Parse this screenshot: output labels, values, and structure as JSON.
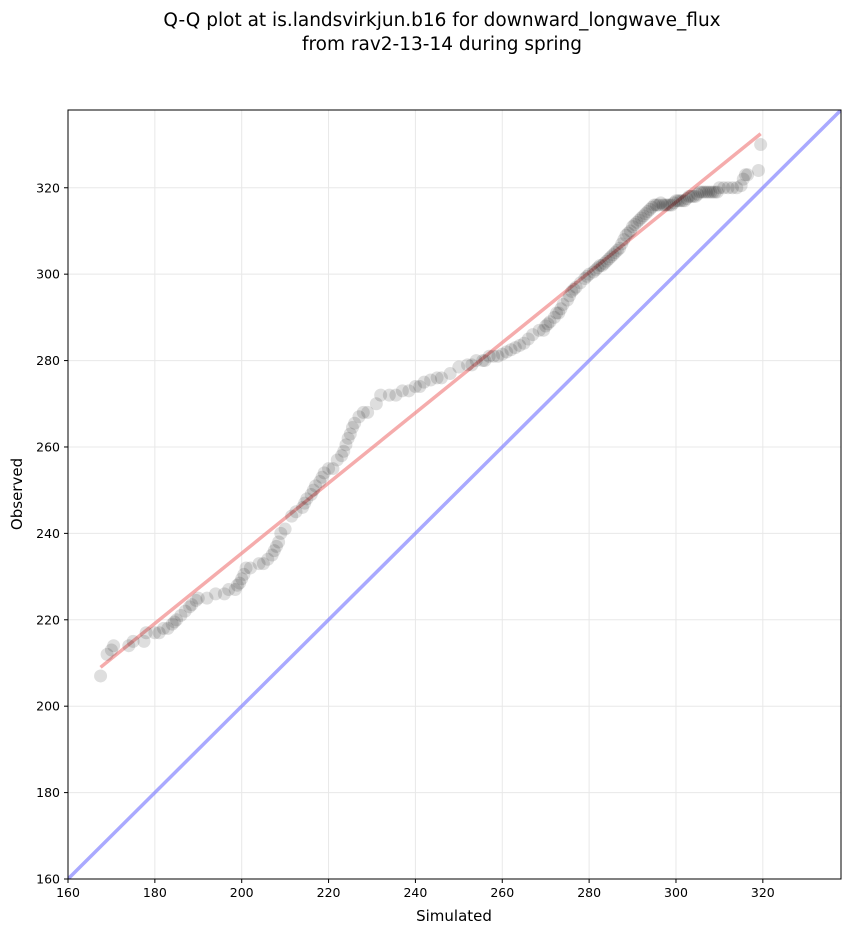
{
  "chart_data": {
    "type": "scatter",
    "title_lines": [
      "Q-Q plot at is.landsvirkjun.b16 for downward_longwave_flux",
      "from rav2-13-14 during spring"
    ],
    "xlabel": "Simulated",
    "ylabel": "Observed",
    "xlim": [
      160,
      338
    ],
    "ylim": [
      160,
      338
    ],
    "x_ticks": [
      160,
      180,
      200,
      220,
      240,
      260,
      280,
      300,
      320
    ],
    "y_ticks": [
      160,
      180,
      200,
      220,
      240,
      260,
      280,
      300,
      320
    ],
    "grid": true,
    "colors": {
      "points": "#000000",
      "fit_line": "#f08080",
      "identity_line": "#7b7bff",
      "grid": "#e8e8e8"
    },
    "series": [
      {
        "name": "quantiles",
        "kind": "scatter",
        "points": [
          [
            167.5,
            207
          ],
          [
            169,
            212
          ],
          [
            170,
            213
          ],
          [
            170.5,
            214
          ],
          [
            174,
            214
          ],
          [
            175,
            215
          ],
          [
            177.5,
            215
          ],
          [
            178,
            217
          ],
          [
            180,
            217
          ],
          [
            181,
            217
          ],
          [
            182,
            218
          ],
          [
            183,
            218
          ],
          [
            184,
            219
          ],
          [
            184.5,
            219.5
          ],
          [
            185,
            220
          ],
          [
            186,
            221
          ],
          [
            187,
            222
          ],
          [
            188,
            223
          ],
          [
            188.5,
            223.5
          ],
          [
            189.5,
            224.5
          ],
          [
            190,
            225
          ],
          [
            192,
            225
          ],
          [
            194,
            226
          ],
          [
            196,
            226
          ],
          [
            197,
            227
          ],
          [
            198.5,
            227
          ],
          [
            199,
            228
          ],
          [
            199.5,
            228.5
          ],
          [
            200,
            229.5
          ],
          [
            200.5,
            230.5
          ],
          [
            201,
            232
          ],
          [
            202,
            232
          ],
          [
            204,
            233
          ],
          [
            205,
            233
          ],
          [
            206,
            234
          ],
          [
            207,
            235
          ],
          [
            207.5,
            236
          ],
          [
            208,
            237
          ],
          [
            208.5,
            238
          ],
          [
            209,
            240
          ],
          [
            210,
            241
          ],
          [
            211.5,
            244
          ],
          [
            212.5,
            245
          ],
          [
            214,
            246
          ],
          [
            214.5,
            247
          ],
          [
            215,
            248
          ],
          [
            216,
            249
          ],
          [
            216.5,
            250
          ],
          [
            217,
            251
          ],
          [
            218,
            252
          ],
          [
            218.5,
            253
          ],
          [
            219,
            254
          ],
          [
            220,
            255
          ],
          [
            221,
            255
          ],
          [
            222,
            257
          ],
          [
            223,
            258
          ],
          [
            223.5,
            259
          ],
          [
            224,
            260.5
          ],
          [
            224.5,
            262
          ],
          [
            225,
            263
          ],
          [
            225.5,
            264.5
          ],
          [
            226,
            265.5
          ],
          [
            227,
            267
          ],
          [
            228,
            268
          ],
          [
            229,
            268
          ],
          [
            231,
            270
          ],
          [
            232,
            272
          ],
          [
            234,
            272
          ],
          [
            235.5,
            272
          ],
          [
            237,
            273
          ],
          [
            238.5,
            273
          ],
          [
            240,
            274
          ],
          [
            241,
            274
          ],
          [
            242,
            275
          ],
          [
            243.5,
            275.5
          ],
          [
            245,
            276
          ],
          [
            246,
            276
          ],
          [
            248,
            277
          ],
          [
            250,
            278.5
          ],
          [
            252,
            279
          ],
          [
            253,
            279
          ],
          [
            254,
            280
          ],
          [
            255.5,
            280
          ],
          [
            256,
            280
          ],
          [
            257,
            281
          ],
          [
            258,
            281
          ],
          [
            259,
            281
          ],
          [
            260,
            281.5
          ],
          [
            261,
            282
          ],
          [
            262,
            282.5
          ],
          [
            263,
            283
          ],
          [
            264,
            283.5
          ],
          [
            265,
            284
          ],
          [
            266,
            285
          ],
          [
            267,
            286
          ],
          [
            268.5,
            287
          ],
          [
            269.5,
            287
          ],
          [
            270,
            288
          ],
          [
            270.5,
            288.5
          ],
          [
            271,
            289
          ],
          [
            272,
            290
          ],
          [
            272.5,
            291
          ],
          [
            273,
            291
          ],
          [
            273.5,
            292
          ],
          [
            274,
            293
          ],
          [
            275,
            294
          ],
          [
            275.5,
            295
          ],
          [
            276,
            296
          ],
          [
            276.5,
            296.5
          ],
          [
            277,
            297
          ],
          [
            278,
            298
          ],
          [
            279,
            299
          ],
          [
            279.5,
            299.5
          ],
          [
            280,
            300
          ],
          [
            281,
            300.5
          ],
          [
            281.5,
            301
          ],
          [
            282,
            301.5
          ],
          [
            282.5,
            302
          ],
          [
            283,
            302
          ],
          [
            283.5,
            302.5
          ],
          [
            284,
            303
          ],
          [
            284.5,
            303.5
          ],
          [
            285,
            304
          ],
          [
            285.5,
            304.5
          ],
          [
            286,
            305
          ],
          [
            286.5,
            305.5
          ],
          [
            287,
            306
          ],
          [
            287.5,
            307
          ],
          [
            288,
            308
          ],
          [
            288.5,
            309
          ],
          [
            289,
            309.5
          ],
          [
            289.5,
            310
          ],
          [
            290,
            311
          ],
          [
            290.5,
            311.5
          ],
          [
            291,
            312
          ],
          [
            291.5,
            312.5
          ],
          [
            292,
            313
          ],
          [
            292.5,
            313.5
          ],
          [
            293,
            314
          ],
          [
            293.5,
            314.5
          ],
          [
            294,
            315
          ],
          [
            294.5,
            315.5
          ],
          [
            295,
            316
          ],
          [
            295.5,
            316
          ],
          [
            296,
            316
          ],
          [
            296.5,
            316.5
          ],
          [
            297,
            316
          ],
          [
            297.5,
            316
          ],
          [
            298,
            316
          ],
          [
            298.5,
            316
          ],
          [
            299,
            316
          ],
          [
            299.5,
            316.5
          ],
          [
            300,
            317
          ],
          [
            300.5,
            317
          ],
          [
            301,
            317
          ],
          [
            301.5,
            317
          ],
          [
            302,
            317
          ],
          [
            302.5,
            317.5
          ],
          [
            303,
            318
          ],
          [
            303.5,
            318
          ],
          [
            304,
            318
          ],
          [
            304.5,
            318
          ],
          [
            305,
            318.5
          ],
          [
            305.5,
            319
          ],
          [
            306,
            319
          ],
          [
            306.5,
            319
          ],
          [
            307,
            319
          ],
          [
            307.5,
            319
          ],
          [
            308,
            319
          ],
          [
            308.5,
            319
          ],
          [
            309,
            319
          ],
          [
            309.5,
            319
          ],
          [
            310,
            320
          ],
          [
            311,
            320
          ],
          [
            312,
            320
          ],
          [
            313,
            320
          ],
          [
            314,
            320
          ],
          [
            315,
            320.5
          ],
          [
            315.5,
            322
          ],
          [
            316,
            323
          ],
          [
            316.5,
            323
          ],
          [
            319,
            324
          ],
          [
            319.5,
            330
          ]
        ]
      },
      {
        "name": "fit-line",
        "kind": "line",
        "x": [
          167.5,
          319.5
        ],
        "y": [
          209,
          332.5
        ]
      },
      {
        "name": "identity-line",
        "kind": "line",
        "x": [
          160,
          338
        ],
        "y": [
          160,
          338
        ]
      }
    ]
  }
}
